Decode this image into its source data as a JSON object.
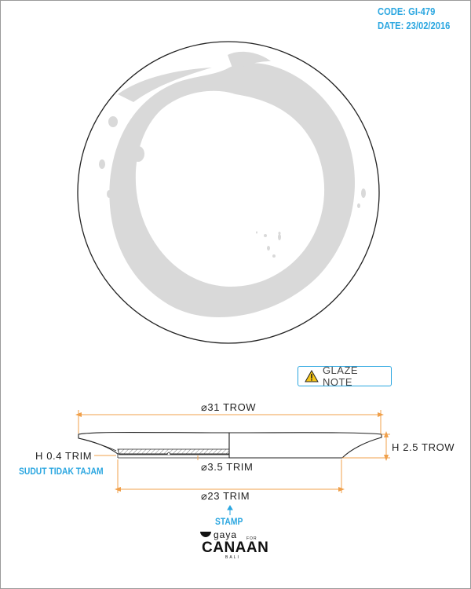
{
  "header": {
    "code": "CODE: GI-479",
    "date": "DATE: 23/02/2016"
  },
  "glaze_note": {
    "label": "GLAZE NOTE",
    "icon": "warning-triangle-icon"
  },
  "dimensions": {
    "diameter_top": "⌀31 TROW",
    "height": "H 2.5 TROW",
    "trim_height": "H 0.4 TRIM",
    "edge_note": "SUDUT TIDAK TAJAM",
    "foot_diameter": "⌀3.5 TRIM",
    "base_diameter": "⌀23 TRIM"
  },
  "stamp": {
    "label": "STAMP",
    "logo_gaya": "gaya",
    "logo_for": "FOR",
    "logo_canaan": "CANAAN",
    "logo_bali": "BALI"
  },
  "colors": {
    "accent_blue": "#2aa6e0",
    "dimension_orange": "#f0a04b",
    "glaze_stroke_grey": "#d9d9d9",
    "outline": "#222222"
  }
}
